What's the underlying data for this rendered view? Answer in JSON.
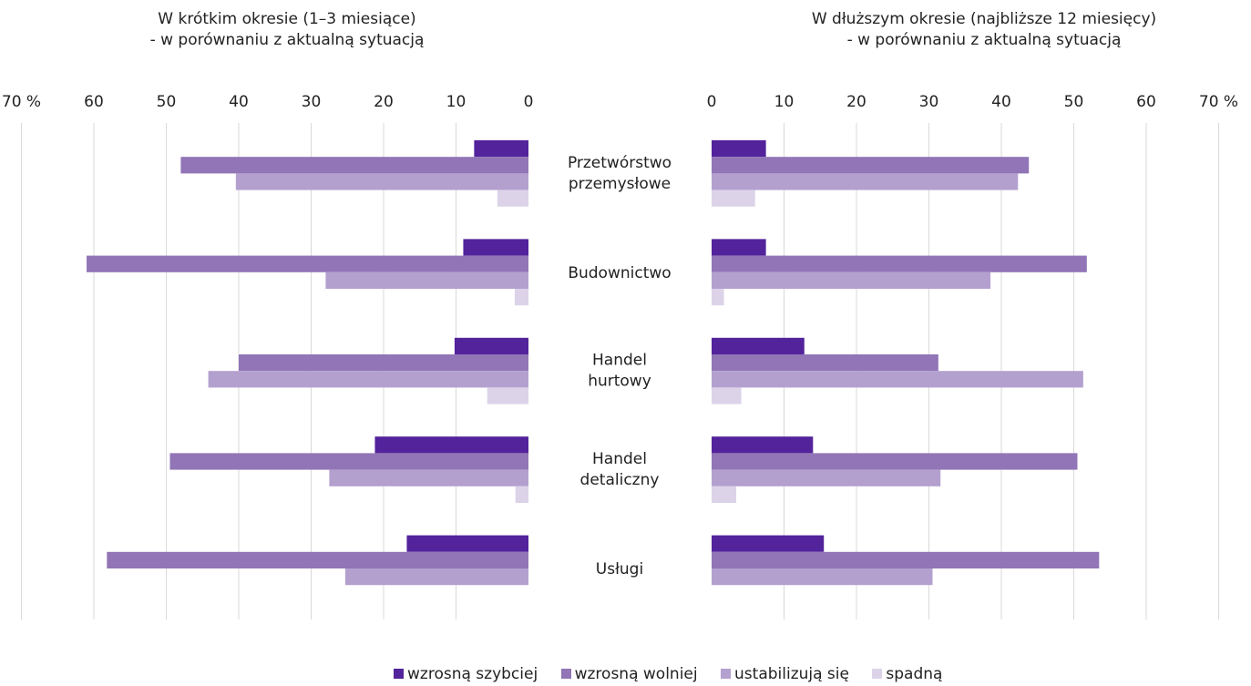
{
  "chart_data": [
    {
      "type": "bar",
      "orientation": "horizontal",
      "direction": "reversed",
      "title_lines": [
        "W krótkim okresie (1–3 miesiące)",
        "- w porównaniu z aktualną sytuacją"
      ],
      "xlim": [
        0,
        70
      ],
      "ticks": [
        "70 %",
        "60",
        "50",
        "40",
        "30",
        "20",
        "10",
        "0"
      ],
      "categories": [
        "Przetwórstwo przemysłowe",
        "Budownictwo",
        "Handel hurtowy",
        "Handel detaliczny",
        "Usługi"
      ],
      "series": [
        {
          "name": "wzrosną szybciej",
          "values": [
            7.5,
            9,
            10.2,
            21.2,
            16.8
          ]
        },
        {
          "name": "wzrosną wolniej",
          "values": [
            48,
            61,
            40,
            49.5,
            58.2
          ]
        },
        {
          "name": "ustabilizują się",
          "values": [
            40.4,
            28,
            44.2,
            27.5,
            25.3
          ]
        },
        {
          "name": "spadną",
          "values": [
            4.3,
            1.9,
            5.7,
            1.8,
            0
          ]
        }
      ],
      "grid": true
    },
    {
      "type": "bar",
      "orientation": "horizontal",
      "title_lines": [
        "W dłuższym okresie (najbliższe 12 miesięcy)",
        "- w porównaniu z aktualną sytuacją"
      ],
      "xlim": [
        0,
        70
      ],
      "ticks": [
        "0",
        "10",
        "20",
        "30",
        "40",
        "50",
        "60",
        "70 %"
      ],
      "categories": [
        "Przetwórstwo przemysłowe",
        "Budownictwo",
        "Handel hurtowy",
        "Handel detaliczny",
        "Usługi"
      ],
      "series": [
        {
          "name": "wzrosną szybciej",
          "values": [
            7.5,
            7.5,
            12.8,
            14,
            15.5
          ]
        },
        {
          "name": "wzrosną wolniej",
          "values": [
            43.8,
            51.8,
            31.3,
            50.5,
            53.5
          ]
        },
        {
          "name": "ustabilizują się",
          "values": [
            42.3,
            38.5,
            51.3,
            31.6,
            30.5
          ]
        },
        {
          "name": "spadną",
          "values": [
            6,
            1.7,
            4.1,
            3.4,
            0
          ]
        }
      ],
      "grid": true
    }
  ],
  "category_lines": [
    [
      "Przetwórstwo",
      "przemysłowe"
    ],
    [
      "Budownictwo"
    ],
    [
      "Handel",
      "hurtowy"
    ],
    [
      "Handel",
      "detaliczny"
    ],
    [
      "Usługi"
    ]
  ],
  "legend": {
    "position": "bottom",
    "items": [
      {
        "label": "wzrosną szybciej",
        "color": "#52239b"
      },
      {
        "label": "wzrosną wolniej",
        "color": "#9175b6"
      },
      {
        "label": "ustabilizują się",
        "color": "#b3a0cf"
      },
      {
        "label": "spadną",
        "color": "#dcd3e9"
      }
    ]
  },
  "colors": [
    "#52239b",
    "#9175b6",
    "#b3a0cf",
    "#dcd3e9"
  ]
}
